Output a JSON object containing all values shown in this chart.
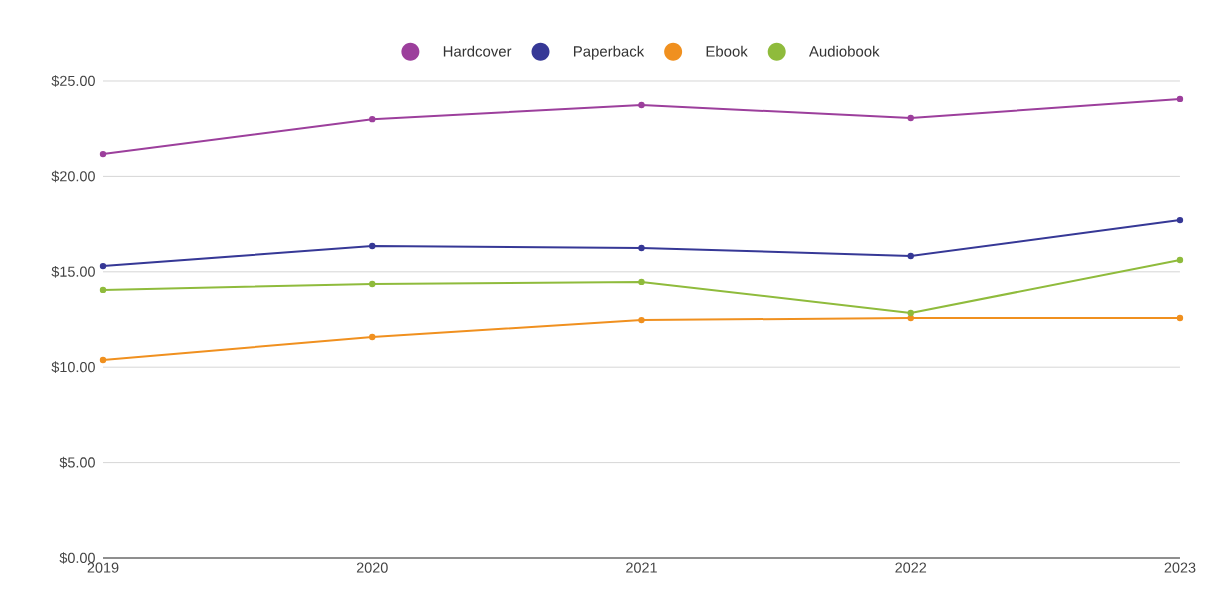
{
  "chart_data": {
    "type": "line",
    "x": [
      2019,
      2020,
      2021,
      2022,
      2023
    ],
    "series": [
      {
        "name": "Hardcover",
        "color": "#9c3f9c",
        "values": [
          21.17,
          23.0,
          23.74,
          23.06,
          24.06
        ]
      },
      {
        "name": "Paperback",
        "color": "#363896",
        "values": [
          15.3,
          16.35,
          16.25,
          15.83,
          17.71
        ]
      },
      {
        "name": "Ebook",
        "color": "#f0901f",
        "values": [
          10.38,
          11.58,
          12.47,
          12.58,
          12.58
        ]
      },
      {
        "name": "Audiobook",
        "color": "#8fbb3c",
        "values": [
          14.05,
          14.36,
          14.47,
          12.84,
          15.62
        ]
      }
    ],
    "xlim": [
      2019,
      2023
    ],
    "xticks": [
      2019,
      2020,
      2021,
      2022,
      2023
    ],
    "ylim": [
      0,
      25
    ],
    "yticks": [
      {
        "value": 0,
        "label": "$0.00"
      },
      {
        "value": 5,
        "label": "$5.00"
      },
      {
        "value": 10,
        "label": "$10.00"
      },
      {
        "value": 15,
        "label": "$15.00"
      },
      {
        "value": 20,
        "label": "$20.00"
      },
      {
        "value": 25,
        "label": "$25.00"
      }
    ],
    "grid": "y",
    "legend": "top",
    "marker": "circle",
    "line_style": "solid"
  }
}
